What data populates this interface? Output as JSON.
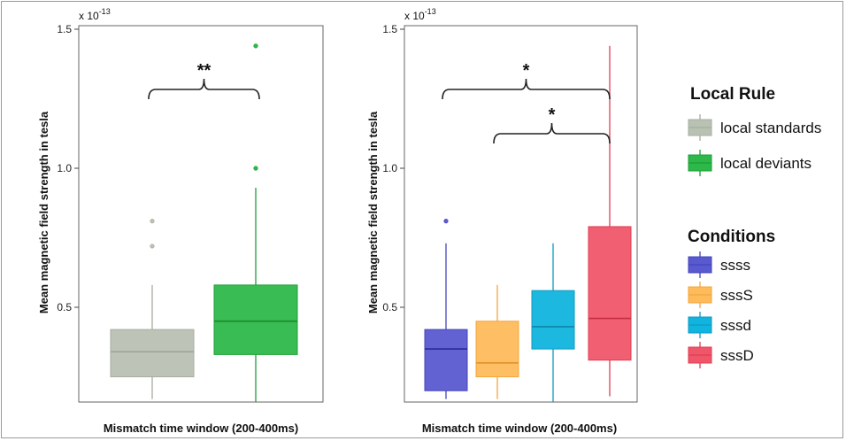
{
  "chart_data": [
    {
      "type": "box",
      "panel": "left",
      "ylabel": "Mean magnetic field strength in tesla",
      "xlabel": "Mismatch time window (200-400ms)",
      "multiplier": "x 10",
      "exponent": "-13",
      "ylim": [
        0.15,
        1.55
      ],
      "yticks": [
        0.5,
        1.0,
        1.5
      ],
      "ytick_labels": [
        "0.5",
        "1.0",
        "1.5"
      ],
      "grid": false,
      "boxes": [
        {
          "name": "local standards",
          "color": "#b9c1b3",
          "edge": "#a6ae9f",
          "median_color": "#9aa394",
          "q1": 0.25,
          "median": 0.34,
          "q3": 0.42,
          "whisker_low": 0.17,
          "whisker_high": 0.58,
          "outliers": [
            0.72,
            0.81
          ]
        },
        {
          "name": "local deviants",
          "color": "#2db84a",
          "edge": "#1e9e37",
          "median_color": "#178a2d",
          "q1": 0.33,
          "median": 0.45,
          "q3": 0.58,
          "whisker_low": 0.16,
          "whisker_high": 0.93,
          "outliers": [
            1.0,
            1.44
          ]
        }
      ],
      "significance": [
        {
          "label": "**",
          "from": 0,
          "to": 1
        }
      ]
    },
    {
      "type": "box",
      "panel": "right",
      "ylabel": "Mean magnetic field strength in tesla",
      "xlabel": "Mismatch time window (200-400ms)",
      "multiplier": "x 10",
      "exponent": "-13",
      "ylim": [
        0.15,
        1.55
      ],
      "yticks": [
        0.5,
        1.0,
        1.5
      ],
      "ytick_labels": [
        "0.5",
        "1.0",
        "1.5"
      ],
      "grid": false,
      "boxes": [
        {
          "name": "ssss",
          "color": "#5a5ad0",
          "edge": "#4444bb",
          "median_color": "#2a2a99",
          "q1": 0.2,
          "median": 0.35,
          "q3": 0.42,
          "whisker_low": 0.17,
          "whisker_high": 0.73,
          "outliers": [
            0.81
          ]
        },
        {
          "name": "sssS",
          "color": "#fdbb5c",
          "edge": "#f5a63a",
          "median_color": "#e0922a",
          "q1": 0.25,
          "median": 0.3,
          "q3": 0.45,
          "whisker_low": 0.17,
          "whisker_high": 0.58,
          "outliers": []
        },
        {
          "name": "sssd",
          "color": "#11b4de",
          "edge": "#0c9cc2",
          "median_color": "#0b86a8",
          "q1": 0.35,
          "median": 0.43,
          "q3": 0.56,
          "whisker_low": 0.16,
          "whisker_high": 0.73,
          "outliers": []
        },
        {
          "name": "sssD",
          "color": "#f0566a",
          "edge": "#e03c51",
          "median_color": "#c52d42",
          "q1": 0.31,
          "median": 0.46,
          "q3": 0.79,
          "whisker_low": 0.18,
          "whisker_high": 1.44,
          "outliers": []
        }
      ],
      "significance": [
        {
          "label": "*",
          "from": 0,
          "to": 3
        },
        {
          "label": "*",
          "from": 1,
          "to": 3
        }
      ]
    }
  ],
  "legend": {
    "local_rule": {
      "title": "Local Rule",
      "entries": [
        {
          "label": "local standards",
          "color": "#b9c1b3",
          "edge": "#a6ae9f"
        },
        {
          "label": "local deviants",
          "color": "#2db84a",
          "edge": "#1e9e37"
        }
      ]
    },
    "conditions": {
      "title": "Conditions",
      "entries": [
        {
          "label": "ssss",
          "color": "#5a5ad0",
          "edge": "#4444bb"
        },
        {
          "label": "sssS",
          "color": "#fdbb5c",
          "edge": "#f5a63a"
        },
        {
          "label": "sssd",
          "color": "#11b4de",
          "edge": "#0c9cc2"
        },
        {
          "label": "sssD",
          "color": "#f0566a",
          "edge": "#e03c51"
        }
      ]
    }
  }
}
